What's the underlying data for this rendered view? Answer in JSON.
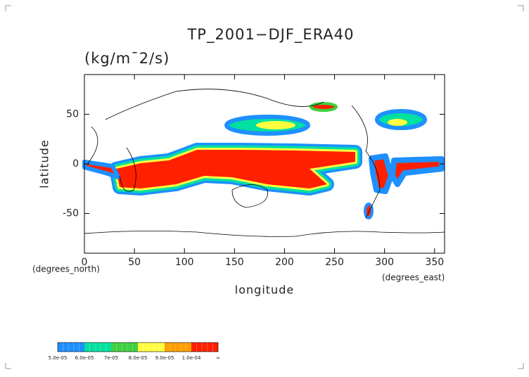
{
  "chart_data": {
    "type": "contour_map",
    "title": "TP_2001−DJF_ERA40",
    "units": "(kg/m¯2/s)",
    "x_label": "longitude",
    "y_label": "latitude",
    "x_unit": "(degrees_east)",
    "y_unit": "(degrees_north)",
    "xlim": [
      0,
      360
    ],
    "ylim": [
      -90,
      90
    ],
    "xticks": [
      0,
      50,
      100,
      150,
      200,
      250,
      300,
      350
    ],
    "yticks": [
      -50,
      0,
      50
    ],
    "colorbar": {
      "labels": [
        "5.0e-05",
        "6.0e-05",
        "7e-05",
        "8.0e-05",
        "9.0e-05",
        "1.0e-04",
        "∞"
      ],
      "colors": [
        "#1e90ff",
        "#00e0a0",
        "#40d040",
        "#ffff40",
        "#ffa000",
        "#ff2000"
      ]
    }
  }
}
